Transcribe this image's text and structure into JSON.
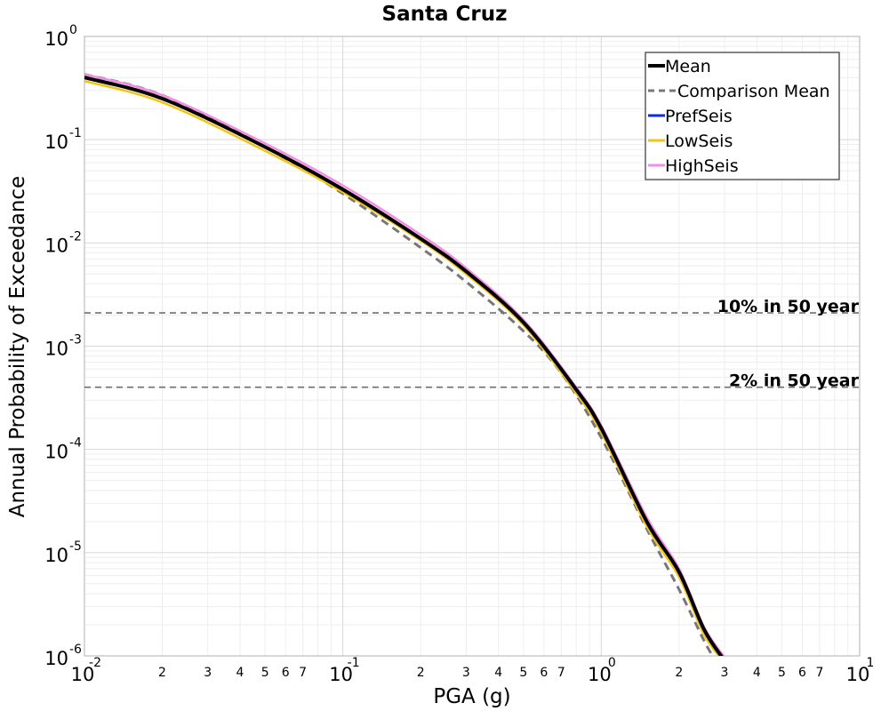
{
  "chart_data": {
    "type": "line",
    "title": "Santa Cruz",
    "xlabel": "PGA (g)",
    "ylabel": "Annual Probability of Exceedance",
    "xscale": "log",
    "yscale": "log",
    "xlim": [
      0.01,
      10
    ],
    "ylim": [
      1e-06,
      1
    ],
    "grid": true,
    "legend_position": "top-right",
    "x_tick_labels": {
      "major": [
        {
          "value": 0.01,
          "base": "10",
          "exp": "-2"
        },
        {
          "value": 0.1,
          "base": "10",
          "exp": "-1"
        },
        {
          "value": 1,
          "base": "10",
          "exp": "0"
        },
        {
          "value": 10,
          "base": "10",
          "exp": "1"
        }
      ],
      "minor": [
        {
          "value": 0.02,
          "label": "2"
        },
        {
          "value": 0.03,
          "label": "3"
        },
        {
          "value": 0.04,
          "label": "4"
        },
        {
          "value": 0.05,
          "label": "5"
        },
        {
          "value": 0.06,
          "label": "6"
        },
        {
          "value": 0.07,
          "label": "7"
        },
        {
          "value": 0.2,
          "label": "2"
        },
        {
          "value": 0.3,
          "label": "3"
        },
        {
          "value": 0.4,
          "label": "4"
        },
        {
          "value": 0.5,
          "label": "5"
        },
        {
          "value": 0.6,
          "label": "6"
        },
        {
          "value": 0.7,
          "label": "7"
        },
        {
          "value": 2,
          "label": "2"
        },
        {
          "value": 3,
          "label": "3"
        },
        {
          "value": 4,
          "label": "4"
        },
        {
          "value": 5,
          "label": "5"
        },
        {
          "value": 6,
          "label": "6"
        },
        {
          "value": 7,
          "label": "7"
        }
      ]
    },
    "y_tick_labels": [
      {
        "value": 1,
        "base": "10",
        "exp": "0"
      },
      {
        "value": 0.1,
        "base": "10",
        "exp": "-1"
      },
      {
        "value": 0.01,
        "base": "10",
        "exp": "-2"
      },
      {
        "value": 0.001,
        "base": "10",
        "exp": "-3"
      },
      {
        "value": 0.0001,
        "base": "10",
        "exp": "-4"
      },
      {
        "value": 1e-05,
        "base": "10",
        "exp": "-5"
      },
      {
        "value": 1e-06,
        "base": "10",
        "exp": "-6"
      }
    ],
    "series": [
      {
        "name": "Comparison Mean",
        "color": "#777777",
        "dash": true,
        "x": [
          0.01,
          0.02,
          0.05,
          0.1,
          0.2,
          0.3,
          0.5,
          0.7,
          1.0,
          1.5,
          2.0,
          2.5,
          2.7
        ],
        "y": [
          0.43,
          0.27,
          0.085,
          0.03,
          0.009,
          0.0042,
          0.0014,
          0.00055,
          0.00013,
          1.7e-05,
          4.4e-06,
          1.4e-06,
          1e-06
        ]
      },
      {
        "name": "PrefSeis",
        "color": "#0b2be8",
        "dash": false,
        "x": [
          0.01,
          0.02,
          0.05,
          0.1,
          0.2,
          0.3,
          0.5,
          0.8,
          1.0,
          1.5,
          2.0,
          2.5,
          3.0
        ],
        "y": [
          0.4,
          0.25,
          0.085,
          0.033,
          0.011,
          0.0053,
          0.0017,
          0.00038,
          0.00016,
          2e-05,
          6.5e-06,
          1.8e-06,
          9e-07
        ]
      },
      {
        "name": "LowSeis",
        "color": "#f2c418",
        "dash": false,
        "x": [
          0.01,
          0.02,
          0.05,
          0.1,
          0.2,
          0.3,
          0.5,
          0.8,
          1.0,
          1.5,
          2.0,
          2.5,
          2.98
        ],
        "y": [
          0.37,
          0.23,
          0.078,
          0.031,
          0.0105,
          0.005,
          0.0016,
          0.00035,
          0.000145,
          1.8e-05,
          5.8e-06,
          1.6e-06,
          8.8e-07
        ]
      },
      {
        "name": "HighSeis",
        "color": "#f58ce8",
        "dash": false,
        "x": [
          0.01,
          0.02,
          0.05,
          0.1,
          0.2,
          0.3,
          0.5,
          0.8,
          1.0,
          1.5,
          2.0,
          2.5,
          3.02
        ],
        "y": [
          0.43,
          0.27,
          0.092,
          0.036,
          0.012,
          0.0057,
          0.0018,
          0.0004,
          0.00017,
          2.2e-05,
          7e-06,
          1.9e-06,
          9.5e-07
        ]
      },
      {
        "name": "Mean",
        "color": "#000000",
        "dash": false,
        "x": [
          0.01,
          0.02,
          0.05,
          0.1,
          0.2,
          0.3,
          0.5,
          0.8,
          1.0,
          1.5,
          2.0,
          2.5,
          3.0
        ],
        "y": [
          0.4,
          0.25,
          0.085,
          0.033,
          0.011,
          0.0053,
          0.0017,
          0.00038,
          0.00016,
          2e-05,
          6.5e-06,
          1.8e-06,
          9e-07
        ]
      }
    ],
    "reference_lines": [
      {
        "label": "10% in 50 year",
        "y": 0.0021
      },
      {
        "label": "2% in 50 year",
        "y": 0.0004
      }
    ],
    "legend": [
      {
        "label": "Mean",
        "color": "#000000",
        "style": "solid-thick"
      },
      {
        "label": "Comparison Mean",
        "color": "#777777",
        "style": "dashed"
      },
      {
        "label": "PrefSeis",
        "color": "#0b2be8",
        "style": "solid"
      },
      {
        "label": "LowSeis",
        "color": "#f2c418",
        "style": "solid"
      },
      {
        "label": "HighSeis",
        "color": "#f58ce8",
        "style": "solid"
      }
    ]
  }
}
